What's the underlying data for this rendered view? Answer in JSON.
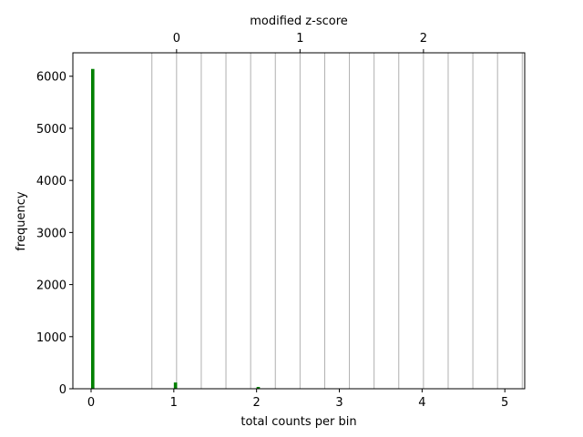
{
  "chart_data": {
    "type": "bar",
    "title": "",
    "xlabel": "total counts per bin",
    "ylabel": "frequency",
    "top_xlabel": "modified z-score",
    "xlim": [
      -0.22,
      5.24
    ],
    "ylim": [
      0,
      6450
    ],
    "bar_width": 0.04,
    "bar_color": "#008000",
    "bars": [
      {
        "x": 0.02,
        "value": 6140
      },
      {
        "x": 1.02,
        "value": 120
      },
      {
        "x": 2.02,
        "value": 35
      }
    ],
    "x_ticks": [
      0,
      1,
      2,
      3,
      4,
      5
    ],
    "x_tick_labels": [
      "0",
      "1",
      "2",
      "3",
      "4",
      "5"
    ],
    "y_ticks": [
      0,
      1000,
      2000,
      3000,
      4000,
      5000,
      6000
    ],
    "y_tick_labels": [
      "0",
      "1000",
      "2000",
      "3000",
      "4000",
      "5000",
      "6000"
    ],
    "top_axis": {
      "xlim": [
        -0.84,
        2.82
      ],
      "ticks": [
        0,
        1,
        2
      ],
      "tick_labels": [
        "0",
        "1",
        "2"
      ],
      "grid_positions": [
        -0.2,
        0,
        0.2,
        0.4,
        0.6,
        0.8,
        1.0,
        1.2,
        1.4,
        1.6,
        1.8,
        2.0,
        2.2,
        2.4,
        2.6,
        2.8
      ]
    },
    "grid": "vertical, top axis",
    "grid_color": "#b0b0b0"
  }
}
